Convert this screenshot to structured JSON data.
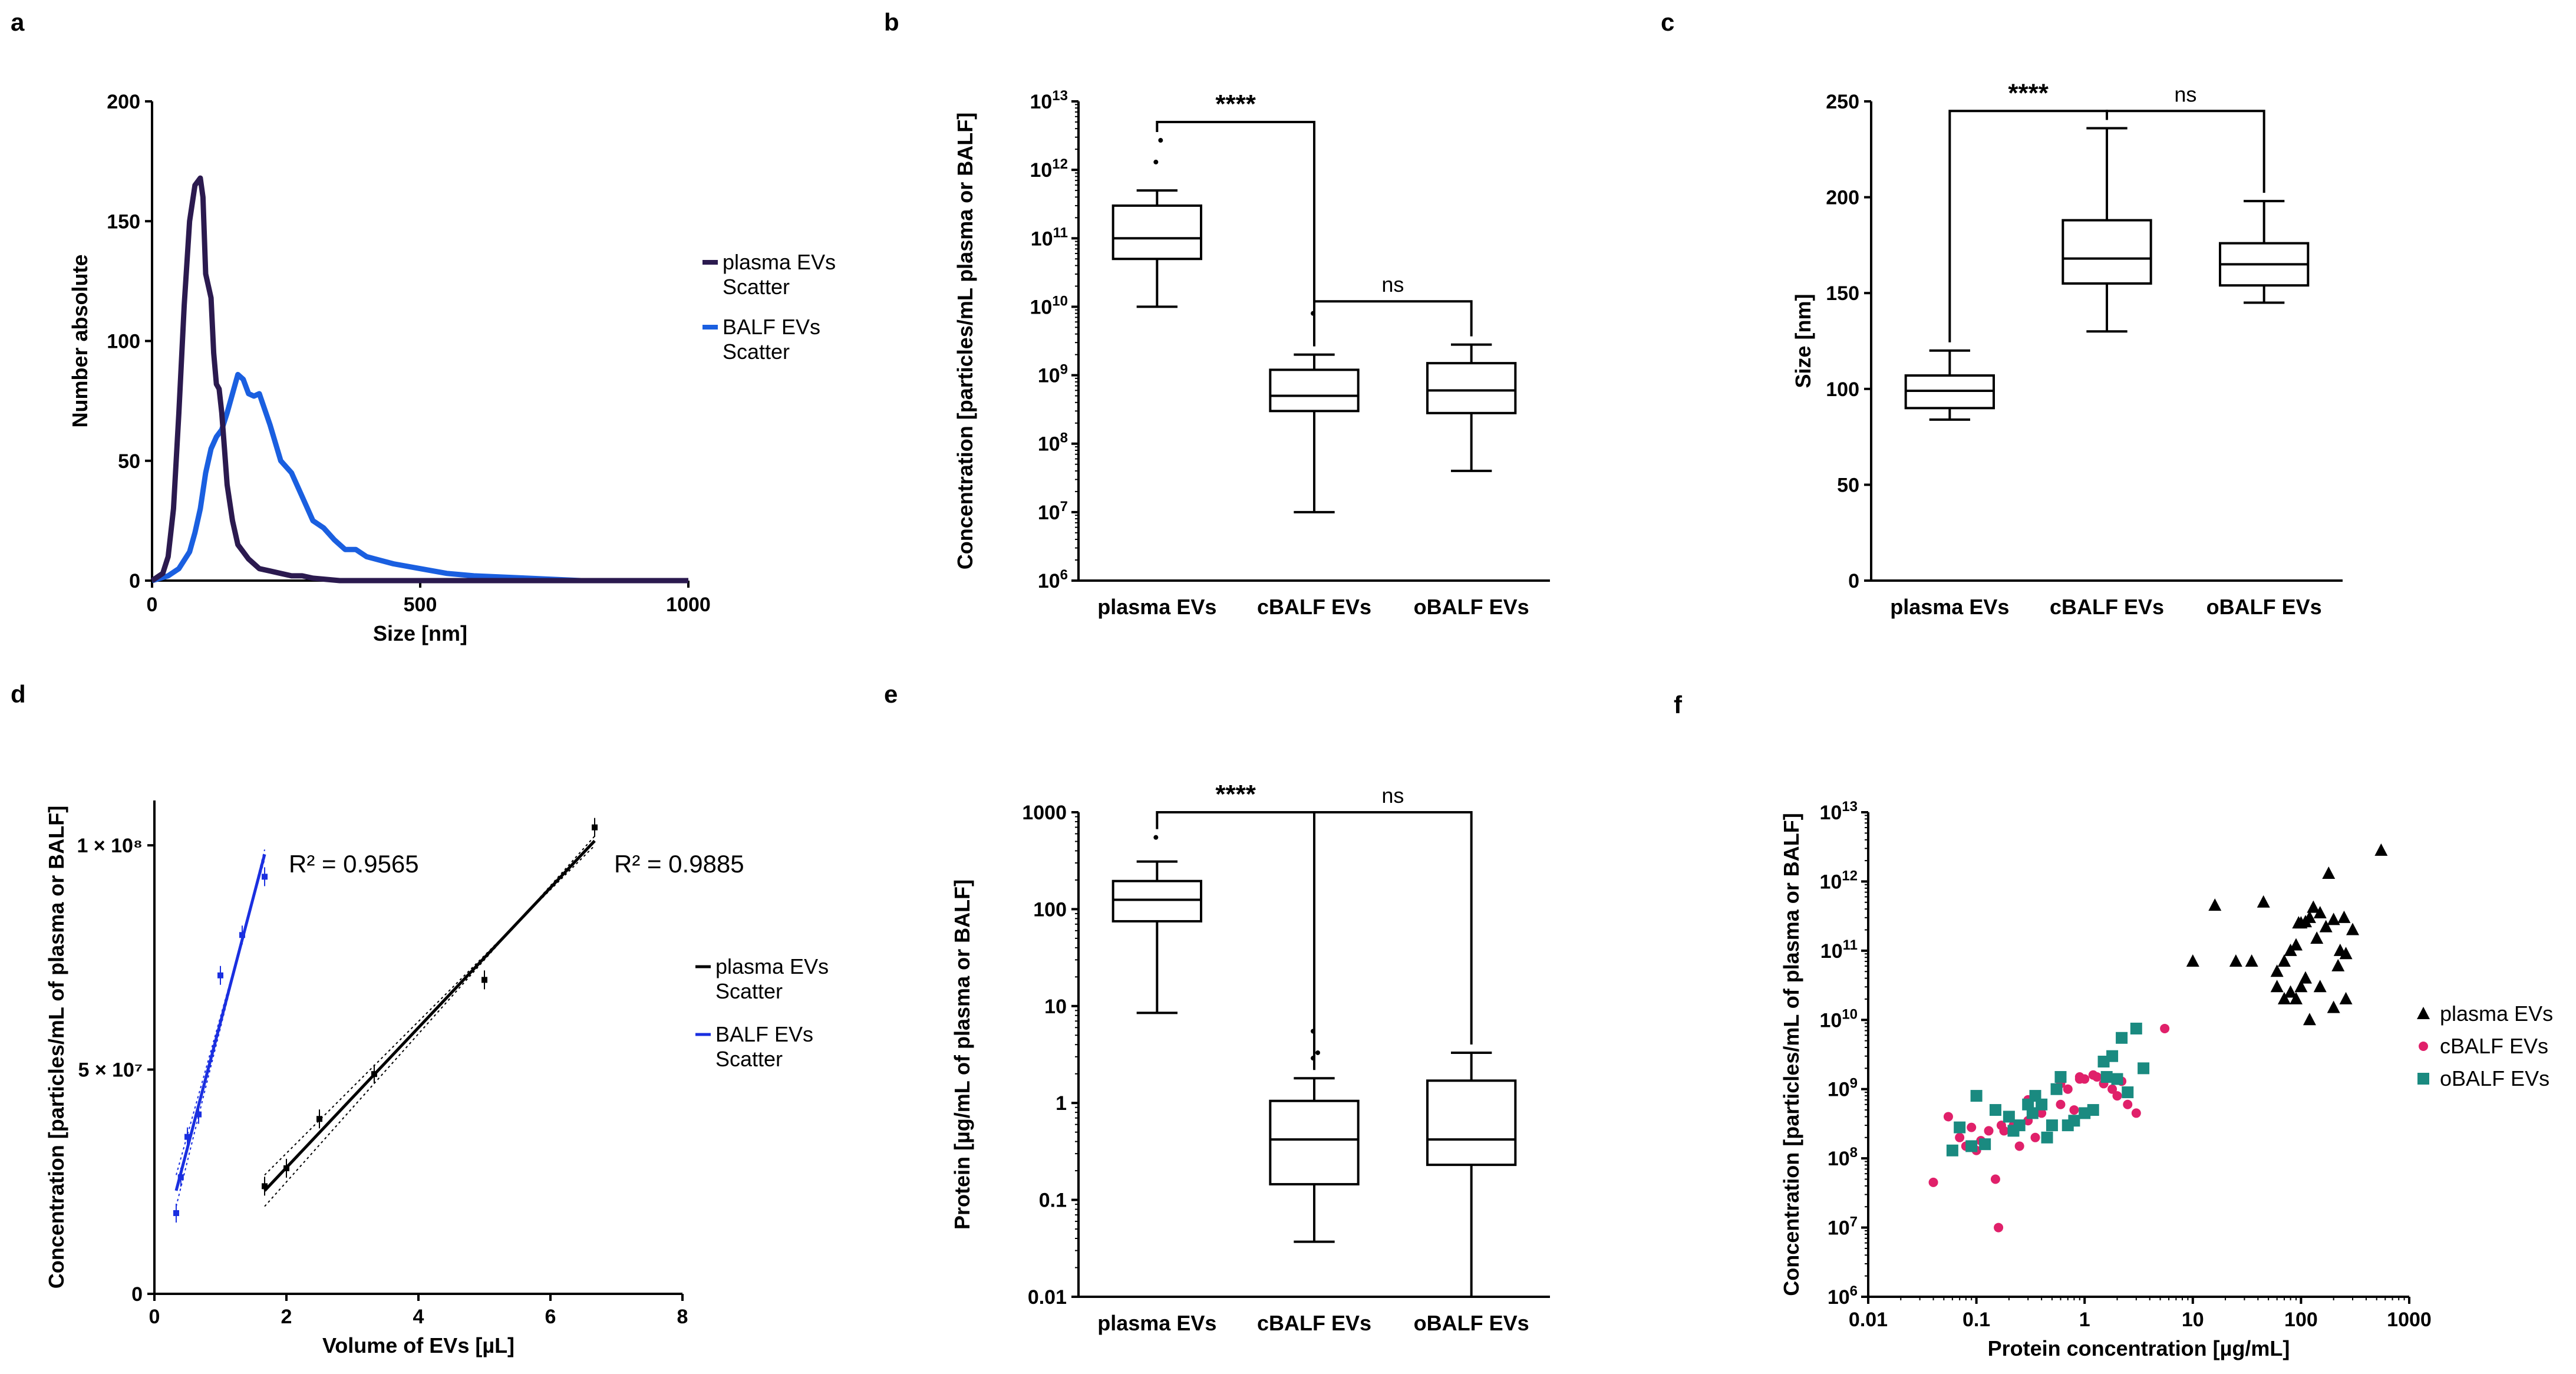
{
  "chart_data": [
    {
      "id": "a",
      "type": "line",
      "letter": "a",
      "xlabel": "Size [nm]",
      "ylabel": "Number absolute",
      "xlim": [
        0,
        1000
      ],
      "ylim": [
        0,
        200
      ],
      "xticks": [
        "0",
        "500",
        "1000"
      ],
      "yticks": [
        "0",
        "50",
        "100",
        "150",
        "200"
      ],
      "series": [
        {
          "name": "plasma EVs\nScatter",
          "color": "#2b1a4f",
          "x": [
            0,
            20,
            30,
            40,
            50,
            60,
            70,
            80,
            90,
            95,
            100,
            110,
            115,
            120,
            125,
            130,
            135,
            140,
            150,
            160,
            170,
            180,
            190,
            200,
            220,
            240,
            260,
            280,
            300,
            350,
            400,
            1000
          ],
          "y": [
            0,
            3,
            10,
            30,
            70,
            115,
            150,
            165,
            168,
            160,
            128,
            118,
            95,
            82,
            80,
            70,
            55,
            40,
            25,
            15,
            12,
            9,
            7,
            5,
            4,
            3,
            2,
            2,
            1,
            0,
            0,
            0
          ]
        },
        {
          "name": "BALF EVs\nScatter",
          "color": "#1a5fe0",
          "x": [
            0,
            30,
            50,
            70,
            80,
            90,
            100,
            110,
            120,
            130,
            140,
            150,
            160,
            170,
            180,
            190,
            200,
            220,
            240,
            260,
            280,
            300,
            320,
            340,
            360,
            380,
            400,
            450,
            500,
            550,
            600,
            700,
            800,
            1000
          ],
          "y": [
            0,
            2,
            5,
            12,
            20,
            30,
            45,
            55,
            60,
            63,
            70,
            78,
            86,
            84,
            78,
            77,
            78,
            65,
            50,
            45,
            35,
            25,
            22,
            17,
            13,
            13,
            10,
            7,
            5,
            3,
            2,
            1,
            0,
            0
          ]
        }
      ]
    },
    {
      "id": "b",
      "type": "box",
      "letter": "b",
      "scale": "log",
      "ylabel": "Concentration [particles/mL plasma or BALF]",
      "ylim_exp": [
        6,
        13
      ],
      "categories": [
        "plasma EVs",
        "cBALF EVs",
        "oBALF EVs"
      ],
      "boxes": [
        {
          "min": 10000000000.0,
          "q1": 50000000000.0,
          "median": 100000000000.0,
          "q3": 300000000000.0,
          "max": 500000000000.0,
          "outliers": [
            1300000000000.0,
            2700000000000.0
          ]
        },
        {
          "min": 10000000.0,
          "q1": 300000000.0,
          "median": 500000000.0,
          "q3": 1200000000.0,
          "max": 2000000000.0,
          "outliers": [
            8000000000.0
          ]
        },
        {
          "min": 40000000.0,
          "q1": 280000000.0,
          "median": 600000000.0,
          "q3": 1500000000.0,
          "max": 2800000000.0,
          "outliers": []
        }
      ],
      "brackets": [
        {
          "from": 0,
          "to": 1,
          "label": "****",
          "y": 5000000000000.0
        },
        {
          "from": 1,
          "to": 2,
          "label": "ns",
          "y": 12000000000.0
        }
      ]
    },
    {
      "id": "c",
      "type": "box",
      "letter": "c",
      "scale": "linear",
      "ylabel": "Size [nm]",
      "ylim": [
        0,
        250
      ],
      "yticks": [
        "0",
        "50",
        "100",
        "150",
        "200",
        "250"
      ],
      "categories": [
        "plasma EVs",
        "cBALF EVs",
        "oBALF EVs"
      ],
      "boxes": [
        {
          "min": 84,
          "q1": 90,
          "median": 99,
          "q3": 107,
          "max": 120,
          "outliers": []
        },
        {
          "min": 130,
          "q1": 155,
          "median": 168,
          "q3": 188,
          "max": 236,
          "outliers": []
        },
        {
          "min": 145,
          "q1": 154,
          "median": 165,
          "q3": 176,
          "max": 198,
          "outliers": []
        }
      ],
      "brackets": [
        {
          "from": 0,
          "to": 1,
          "label": "****",
          "y": 245
        },
        {
          "from": 1,
          "to": 2,
          "label": "ns",
          "y": 245
        }
      ]
    },
    {
      "id": "d",
      "type": "scatter",
      "letter": "d",
      "xlabel": "Volume of EVs  [µL]",
      "ylabel": "Concentration [particles/mL of plasma or BALF]",
      "xlim": [
        0,
        8
      ],
      "ylim": [
        0,
        110000000.0
      ],
      "xticks": [
        "0",
        "2",
        "4",
        "6",
        "8"
      ],
      "ytick_values": [
        0,
        50000000.0,
        100000000.0
      ],
      "ytick_labels": [
        "0",
        "5 × 10⁷",
        "1 × 10⁸"
      ],
      "annotations": [
        "R² = 0.9565",
        "R² = 0.9885"
      ],
      "series": [
        {
          "name": "BALF EVs\nScatter",
          "color": "#1a2fe0",
          "x": [
            0.33,
            0.4,
            0.5,
            0.67,
            1.0,
            1.33,
            1.67
          ],
          "y": [
            18000000.0,
            26000000.0,
            35000000.0,
            40000000.0,
            71000000.0,
            80000000.0,
            93000000.0
          ],
          "fit": [
            [
              0.33,
              23000000.0
            ],
            [
              1.67,
              98000000.0
            ]
          ]
        },
        {
          "name": "plasma EVs\nScatter",
          "color": "#000000",
          "x": [
            1.67,
            2.0,
            2.5,
            3.33,
            5.0,
            6.67
          ],
          "y": [
            24000000.0,
            28000000.0,
            39000000.0,
            49000000.0,
            70000000.0,
            104000000.0
          ],
          "fit": [
            [
              1.67,
              23000000.0
            ],
            [
              6.67,
              101000000.0
            ]
          ]
        }
      ]
    },
    {
      "id": "e",
      "type": "box",
      "letter": "e",
      "scale": "log",
      "ylabel": "Protein [µg/mL of plasma or BALF]",
      "ylim_exp": [
        -2,
        3
      ],
      "ytick_labels": [
        "0.01",
        "0.1",
        "1",
        "10",
        "100",
        "1000"
      ],
      "categories": [
        "plasma EVs",
        "cBALF EVs",
        "oBALF EVs"
      ],
      "boxes": [
        {
          "min": 8.5,
          "q1": 75,
          "median": 125,
          "q3": 195,
          "max": 310,
          "outliers": [
            550
          ]
        },
        {
          "min": 0.037,
          "q1": 0.145,
          "median": 0.42,
          "q3": 1.05,
          "max": 1.8,
          "outliers": [
            2.9,
            3.3,
            5.5
          ]
        },
        {
          "min": 0.01,
          "q1": 0.23,
          "median": 0.42,
          "q3": 1.7,
          "max": 3.3,
          "outliers": []
        }
      ],
      "brackets": [
        {
          "from": 0,
          "to": 1,
          "label": "****",
          "y": 1000
        },
        {
          "from": 1,
          "to": 2,
          "label": "ns",
          "y": 1000
        }
      ]
    },
    {
      "id": "f",
      "type": "scatter",
      "letter": "f",
      "scale": "loglog",
      "xlabel": "Protein concentration [µg/mL]",
      "ylabel": "Concentration [particles/mL of plasma or BALF]",
      "xlim_exp": [
        -2,
        3
      ],
      "ylim_exp": [
        6,
        13
      ],
      "xtick_labels": [
        "0.01",
        "0.1",
        "1",
        "10",
        "100",
        "1000"
      ],
      "series": [
        {
          "name": "plasma EVs",
          "color": "#000000",
          "marker": "triangle",
          "x": [
            550,
            180,
            150,
            130,
            120,
            110,
            100,
            95,
            250,
            200,
            170,
            140,
            90,
            80,
            70,
            60,
            300,
            260,
            220,
            110,
            100,
            80,
            70,
            90,
            60,
            260,
            230,
            45,
            120,
            150,
            200,
            16,
            10,
            25,
            35
          ],
          "y": [
            2800000000000.0,
            1300000000000.0,
            350000000000.0,
            420000000000.0,
            300000000000.0,
            260000000000.0,
            250000000000.0,
            250000000000.0,
            300000000000.0,
            280000000000.0,
            220000000000.0,
            150000000000.0,
            120000000000.0,
            100000000000.0,
            70000000000.0,
            50000000000.0,
            200000000000.0,
            90000000000.0,
            60000000000.0,
            40000000000.0,
            30000000000.0,
            25000000000.0,
            20000000000.0,
            20000000000.0,
            30000000000.0,
            20000000000.0,
            100000000000.0,
            500000000000.0,
            10000000000.0,
            30000000000.0,
            15000000000.0,
            450000000000.0,
            70000000000.0,
            70000000000.0,
            70000000000.0
          ]
        },
        {
          "name": "cBALF EVs",
          "color": "#e0206a",
          "marker": "circle",
          "x": [
            0.04,
            0.055,
            0.07,
            0.08,
            0.09,
            0.1,
            0.11,
            0.13,
            0.15,
            0.16,
            0.18,
            0.2,
            0.22,
            0.25,
            0.3,
            0.35,
            0.4,
            0.5,
            0.6,
            0.7,
            0.8,
            0.9,
            1.0,
            1.2,
            1.5,
            1.8,
            2.0,
            2.5,
            3.0,
            5.5,
            0.17,
            0.3,
            0.6,
            0.9,
            1.3,
            2.2
          ],
          "y": [
            45000000.0,
            400000000.0,
            200000000.0,
            150000000.0,
            280000000.0,
            130000000.0,
            180000000.0,
            250000000.0,
            50000000.0,
            10000000.0,
            250000000.0,
            400000000.0,
            300000000.0,
            150000000.0,
            700000000.0,
            200000000.0,
            450000000.0,
            300000000.0,
            600000000.0,
            1000000000.0,
            500000000.0,
            1500000000.0,
            1400000000.0,
            1600000000.0,
            1200000000.0,
            1000000000.0,
            800000000.0,
            600000000.0,
            450000000.0,
            7500000000.0,
            300000000.0,
            350000000.0,
            1200000000.0,
            1400000000.0,
            1500000000.0,
            1300000000.0
          ]
        },
        {
          "name": "oBALF EVs",
          "color": "#1a8a80",
          "marker": "square",
          "x": [
            0.06,
            0.07,
            0.09,
            0.1,
            0.12,
            0.15,
            0.2,
            0.22,
            0.25,
            0.3,
            0.33,
            0.35,
            0.4,
            0.45,
            0.5,
            0.55,
            0.6,
            0.7,
            0.8,
            1.0,
            1.2,
            1.5,
            1.6,
            1.8,
            2.0,
            2.2,
            2.5,
            3.0,
            3.5
          ],
          "y": [
            130000000.0,
            280000000.0,
            150000000.0,
            800000000.0,
            160000000.0,
            500000000.0,
            400000000.0,
            250000000.0,
            300000000.0,
            600000000.0,
            450000000.0,
            800000000.0,
            600000000.0,
            200000000.0,
            300000000.0,
            1000000000.0,
            1500000000.0,
            300000000.0,
            350000000.0,
            450000000.0,
            500000000.0,
            2500000000.0,
            1500000000.0,
            3000000000.0,
            1400000000.0,
            5500000000.0,
            900000000.0,
            7500000000.0,
            2000000000.0
          ]
        }
      ]
    }
  ]
}
